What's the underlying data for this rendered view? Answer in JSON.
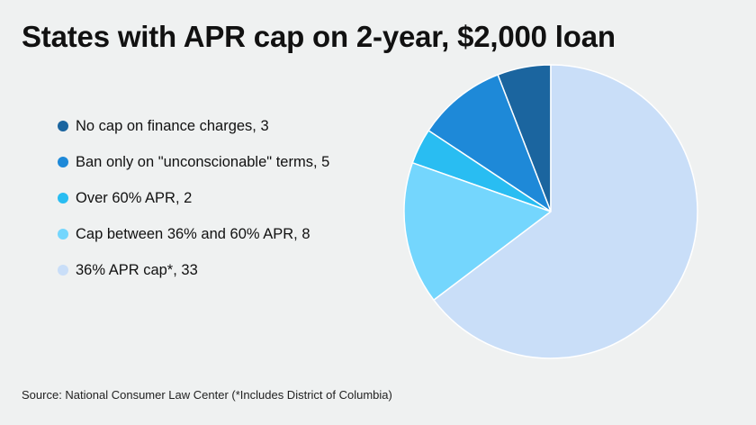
{
  "title": "States with APR cap on 2-year, $2,000 loan",
  "source": "Source: National Consumer Law Center (*Includes District of Columbia)",
  "chart_data": {
    "type": "pie",
    "title": "States with APR cap on 2-year, $2,000 loan",
    "legend_position": "left",
    "slices": [
      {
        "label": "No cap on finance charges",
        "value": 3,
        "color": "#1b659f"
      },
      {
        "label": "Ban only on \"unconscionable\" terms",
        "value": 5,
        "color": "#1e89d8"
      },
      {
        "label": "Over 60% APR",
        "value": 2,
        "color": "#29bdf2"
      },
      {
        "label": "Cap between 36% and 60% APR",
        "value": 8,
        "color": "#74d6fd"
      },
      {
        "label": "36% APR cap*",
        "value": 33,
        "color": "#c9def8"
      }
    ],
    "legend_entries": [
      "No cap on finance charges, 3",
      "Ban only on \"unconscionable\" terms, 5",
      "Over 60% APR, 2",
      "Cap between 36% and 60% APR, 8",
      "36% APR cap*, 33"
    ]
  }
}
